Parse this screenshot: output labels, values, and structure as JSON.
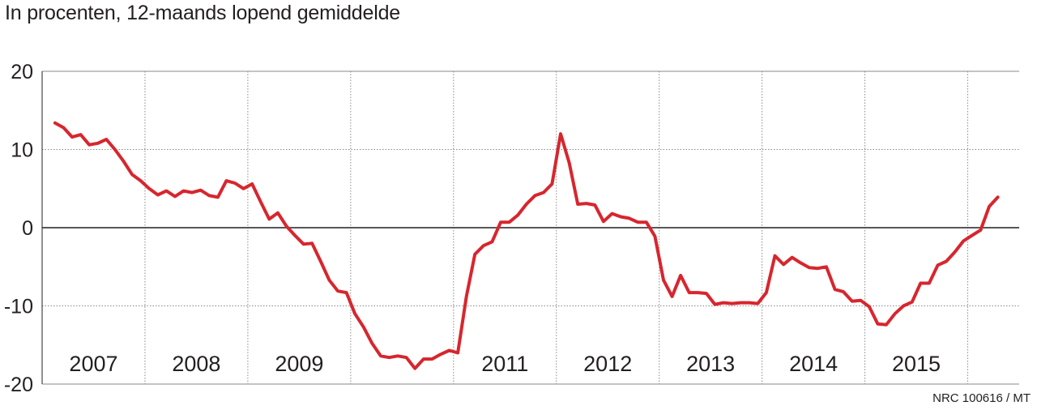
{
  "subtitle": "In procenten, 12-maands lopend gemiddelde",
  "credit": "NRC 100616 / MT",
  "colors": {
    "line": "#d7262e",
    "grid": "#8a8a8a",
    "axis": "#231f20"
  },
  "chart_data": {
    "type": "line",
    "title": "",
    "subtitle": "In procenten, 12-maands lopend gemiddelde",
    "xlabel": "",
    "ylabel": "",
    "ylim": [
      -20,
      20
    ],
    "yticks": [
      20,
      10,
      0,
      -10,
      -20
    ],
    "ytick_labels": [
      "20",
      "10",
      "0",
      "-10",
      "-20"
    ],
    "grid": true,
    "legend": "none",
    "year_labels": [
      {
        "label": "2007",
        "year": 2007
      },
      {
        "label": "2008",
        "year": 2008
      },
      {
        "label": "2009",
        "year": 2009
      },
      {
        "label": "2011",
        "year": 2011
      },
      {
        "label": "2012",
        "year": 2012
      },
      {
        "label": "2013",
        "year": 2013
      },
      {
        "label": "2014",
        "year": 2014
      },
      {
        "label": "2015",
        "year": 2015
      }
    ],
    "x_range": [
      "2007-01",
      "2016-06"
    ],
    "series": [
      {
        "x": [
          "2007-02",
          "2007-03",
          "2007-04",
          "2007-05",
          "2007-06",
          "2007-07",
          "2007-08",
          "2007-09",
          "2007-10",
          "2007-11",
          "2007-12",
          "2008-01",
          "2008-02",
          "2008-03",
          "2008-04",
          "2008-05",
          "2008-06",
          "2008-07",
          "2008-08",
          "2008-09",
          "2008-10",
          "2008-11",
          "2008-12",
          "2009-01",
          "2009-02",
          "2009-03",
          "2009-04",
          "2009-05",
          "2009-06",
          "2009-07",
          "2009-08",
          "2009-09",
          "2009-10",
          "2009-11",
          "2009-12",
          "2010-01",
          "2010-02",
          "2010-03",
          "2010-04",
          "2010-05",
          "2010-06",
          "2010-07",
          "2010-08",
          "2010-09",
          "2010-10",
          "2010-11",
          "2010-12",
          "2011-01",
          "2011-02",
          "2011-03",
          "2011-04",
          "2011-05",
          "2011-06",
          "2011-07",
          "2011-08",
          "2011-09",
          "2011-10",
          "2011-11",
          "2011-12",
          "2012-01",
          "2012-02",
          "2012-03",
          "2012-04",
          "2012-05",
          "2012-06",
          "2012-07",
          "2012-08",
          "2012-09",
          "2012-10",
          "2012-11",
          "2012-12",
          "2013-01",
          "2013-02",
          "2013-03",
          "2013-04",
          "2013-05",
          "2013-06",
          "2013-07",
          "2013-08",
          "2013-09",
          "2013-10",
          "2013-11",
          "2013-12",
          "2014-01",
          "2014-02",
          "2014-03",
          "2014-04",
          "2014-05",
          "2014-06",
          "2014-07",
          "2014-08",
          "2014-09",
          "2014-10",
          "2014-11",
          "2014-12",
          "2015-01",
          "2015-02",
          "2015-03",
          "2015-04",
          "2015-05",
          "2015-06",
          "2015-07",
          "2015-08",
          "2015-09",
          "2015-10",
          "2015-11",
          "2015-12",
          "2016-01",
          "2016-02",
          "2016-03",
          "2016-04"
        ],
        "values": [
          13.4,
          12.8,
          11.6,
          11.9,
          10.6,
          10.8,
          11.3,
          10.0,
          8.5,
          6.8,
          6.0,
          5.0,
          4.2,
          4.7,
          4.0,
          4.7,
          4.5,
          4.8,
          4.1,
          3.9,
          6.0,
          5.7,
          5.0,
          5.6,
          3.3,
          1.1,
          1.9,
          0.2,
          -1.0,
          -2.1,
          -2.0,
          -4.3,
          -6.7,
          -8.1,
          -8.3,
          -11.0,
          -12.7,
          -14.8,
          -16.4,
          -16.6,
          -16.4,
          -16.6,
          -18.0,
          -16.8,
          -16.8,
          -16.2,
          -15.7,
          -16.0,
          -8.8,
          -3.4,
          -2.3,
          -1.8,
          0.7,
          0.7,
          1.6,
          3.0,
          4.1,
          4.5,
          5.6,
          12.0,
          8.3,
          3.0,
          3.1,
          2.9,
          0.8,
          1.8,
          1.4,
          1.2,
          0.7,
          0.7,
          -1.1,
          -6.7,
          -8.8,
          -6.1,
          -8.3,
          -8.3,
          -8.4,
          -9.8,
          -9.6,
          -9.7,
          -9.6,
          -9.6,
          -9.7,
          -8.3,
          -3.6,
          -4.7,
          -3.8,
          -4.5,
          -5.1,
          -5.2,
          -5.0,
          -7.9,
          -8.2,
          -9.4,
          -9.3,
          -10.1,
          -12.3,
          -12.4,
          -11.0,
          -10.0,
          -9.5,
          -7.1,
          -7.1,
          -4.8,
          -4.3,
          -3.1,
          -1.7,
          -1.0,
          -0.3,
          2.7,
          3.9
        ]
      }
    ]
  }
}
